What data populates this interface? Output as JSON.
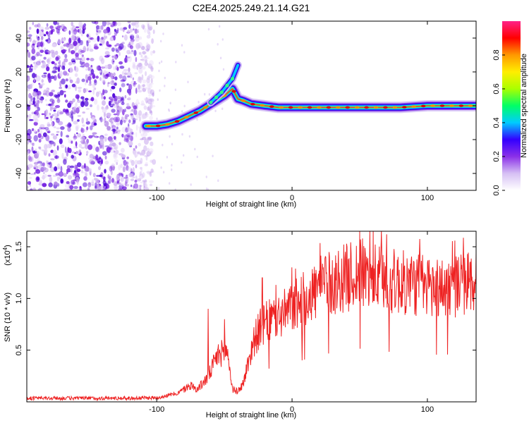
{
  "title": "C2E4.2025.249.21.14.G21",
  "chart_data": [
    {
      "type": "heatmap",
      "name": "spectrogram",
      "xlabel": "Height of straight line (km)",
      "ylabel": "Frequency (Hz)",
      "xlim": [
        -196,
        136
      ],
      "ylim": [
        -50,
        50
      ],
      "xticks": [
        -100,
        0,
        100
      ],
      "yticks": [
        -40,
        -20,
        0,
        20,
        40
      ],
      "xtick_labels": [
        "-100",
        "0",
        "100"
      ],
      "ytick_labels": [
        "-40",
        "-20",
        "0",
        "20",
        "40"
      ],
      "noise_region_x": [
        -196,
        -100
      ],
      "ridge": {
        "x": [
          -108,
          -100,
          -92,
          -84,
          -76,
          -68,
          -62,
          -56,
          -50,
          -44,
          -40,
          -36,
          -30,
          -20,
          -10,
          0,
          20,
          40,
          60,
          80,
          100,
          120,
          136
        ],
        "y": [
          -12,
          -12,
          -11,
          -9,
          -6,
          -3,
          0,
          3,
          6,
          10,
          4,
          3,
          1,
          0,
          -1,
          -1,
          -1,
          -1,
          -1,
          -1,
          0,
          0,
          0
        ]
      },
      "branch": {
        "x": [
          -60,
          -56,
          -52,
          -48,
          -44,
          -40
        ],
        "y": [
          2,
          5,
          8,
          12,
          16,
          24
        ]
      },
      "colorbar": {
        "label": "Normalized spectral amplitude",
        "range": [
          0,
          1
        ],
        "ticks": [
          0.0,
          0.2,
          0.4,
          0.6,
          0.8
        ],
        "tick_labels": [
          "0.0",
          "0.2",
          "0.4",
          "0.6",
          "0.8"
        ],
        "colors": [
          "#ffffff",
          "#d6c0f4",
          "#8b30e8",
          "#3300ff",
          "#00ccff",
          "#00ff66",
          "#aaff00",
          "#ffee00",
          "#ff9900",
          "#ff0000",
          "#ff2288"
        ]
      }
    },
    {
      "type": "line",
      "name": "snr",
      "xlabel": "Height of straight line (km)",
      "ylabel": "SNR (10 * v/v)",
      "scale_label": "(x10",
      "scale_exponent": "4",
      "scale_suffix": ")",
      "xlim": [
        -196,
        136
      ],
      "ylim": [
        0,
        16500
      ],
      "xticks": [
        -100,
        0,
        100
      ],
      "yticks": [
        5000,
        10000,
        15000
      ],
      "xtick_labels": [
        "-100",
        "0",
        "100"
      ],
      "ytick_labels": [
        "0.5",
        "1.0",
        "1.5"
      ],
      "color": "#ee2222",
      "envelope": {
        "x": [
          -196,
          -120,
          -100,
          -85,
          -75,
          -70,
          -62,
          -55,
          -48,
          -44,
          -40,
          -36,
          -32,
          -28,
          -24,
          -20,
          -15,
          -10,
          -5,
          0,
          10,
          20,
          30,
          40,
          50,
          60,
          70,
          80,
          90,
          100,
          110,
          120,
          130,
          136
        ],
        "y": [
          350,
          350,
          400,
          800,
          1600,
          1200,
          2400,
          4500,
          5000,
          1200,
          1000,
          1800,
          4000,
          6000,
          7000,
          7500,
          8000,
          8200,
          8600,
          9000,
          10000,
          11000,
          11500,
          12000,
          12500,
          12000,
          11800,
          11500,
          11400,
          11200,
          11000,
          11200,
          11500,
          11800
        ]
      },
      "peaks": {
        "x": [
          -62,
          -50,
          -22,
          -12,
          0,
          25,
          50,
          70,
          90
        ],
        "y": [
          9000,
          8000,
          12000,
          12500,
          13000,
          14000,
          16500,
          16200,
          13500
        ]
      }
    }
  ]
}
